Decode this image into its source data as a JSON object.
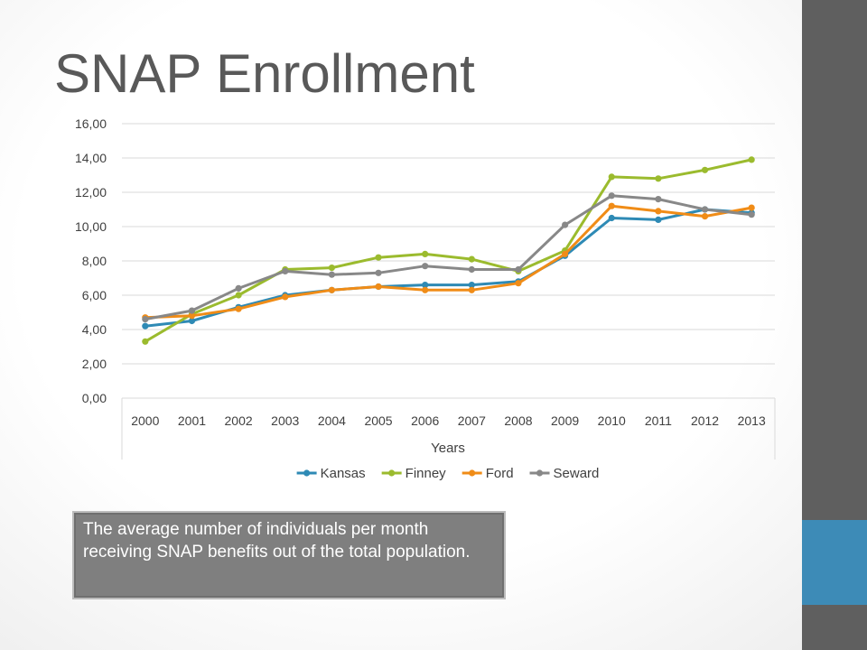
{
  "slide": {
    "title": "SNAP Enrollment",
    "caption": "The average number of individuals per month receiving SNAP benefits out of the total population.",
    "colors": {
      "sidebar": "#5f5f5f",
      "accent": "#3d8bb7",
      "caption_bg": "#7f7f7f"
    }
  },
  "chart_data": {
    "type": "line",
    "title": "",
    "xlabel": "Years",
    "ylabel": "",
    "categories": [
      "2000",
      "2001",
      "2002",
      "2003",
      "2004",
      "2005",
      "2006",
      "2007",
      "2008",
      "2009",
      "2010",
      "2011",
      "2012",
      "2013"
    ],
    "y_ticks": [
      "0,00",
      "2,00",
      "4,00",
      "6,00",
      "8,00",
      "10,00",
      "12,00",
      "14,00",
      "16,00"
    ],
    "ylim": [
      0,
      16
    ],
    "grid": true,
    "legend_position": "bottom",
    "series": [
      {
        "name": "Kansas",
        "color": "#2e8ab5",
        "values": [
          4.2,
          4.5,
          5.3,
          6.0,
          6.3,
          6.5,
          6.6,
          6.6,
          6.8,
          8.3,
          10.5,
          10.4,
          11.0,
          10.8
        ]
      },
      {
        "name": "Finney",
        "color": "#9bbb2e",
        "values": [
          3.3,
          4.9,
          6.0,
          7.5,
          7.6,
          8.2,
          8.4,
          8.1,
          7.4,
          8.6,
          12.9,
          12.8,
          13.3,
          13.9
        ]
      },
      {
        "name": "Ford",
        "color": "#f08c17",
        "values": [
          4.7,
          4.8,
          5.2,
          5.9,
          6.3,
          6.5,
          6.3,
          6.3,
          6.7,
          8.4,
          11.2,
          10.9,
          10.6,
          11.1
        ]
      },
      {
        "name": "Seward",
        "color": "#888888",
        "values": [
          4.6,
          5.1,
          6.4,
          7.4,
          7.2,
          7.3,
          7.7,
          7.5,
          7.5,
          10.1,
          11.8,
          11.6,
          11.0,
          10.7
        ]
      }
    ]
  }
}
